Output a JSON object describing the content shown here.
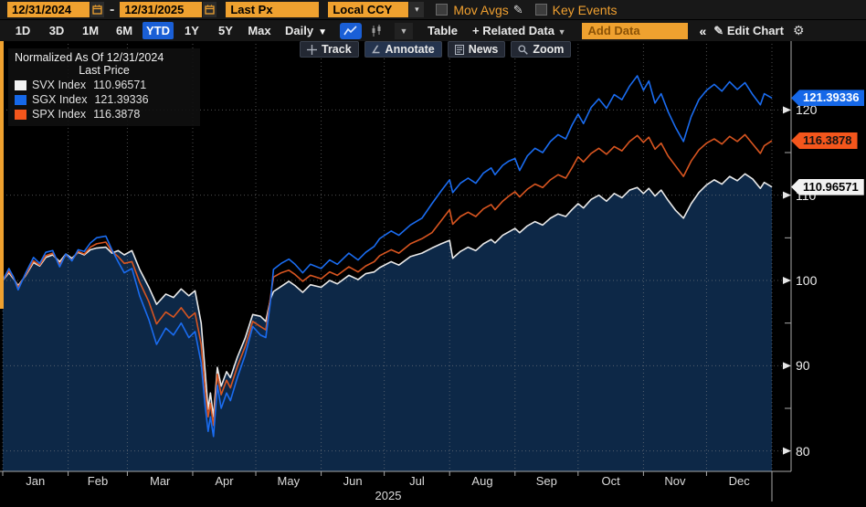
{
  "toolbar": {
    "date_from": "12/31/2024",
    "date_separator": "-",
    "date_to": "12/31/2025",
    "price_field": "Last Px",
    "currency_field": "Local CCY",
    "mov_avgs_label": "Mov Avgs",
    "key_events_label": "Key Events"
  },
  "nav": {
    "ranges": [
      "1D",
      "3D",
      "1M",
      "6M",
      "YTD",
      "1Y",
      "5Y",
      "Max"
    ],
    "selected_range": "YTD",
    "period": "Daily",
    "table_label": "Table",
    "related_data_label": "+ Related Data",
    "related_caret": "▾",
    "add_data_placeholder": "Add Data",
    "collapse_label": "«",
    "edit_chart_label": "Edit Chart"
  },
  "overlay_buttons": {
    "track": "Track",
    "annotate": "Annotate",
    "news": "News",
    "zoom": "Zoom"
  },
  "legend": {
    "title": "Normalized As Of 12/31/2024",
    "subtitle": "Last Price",
    "items": [
      {
        "label": "SVX Index",
        "value": "110.96571",
        "color": "#f2f2f2"
      },
      {
        "label": "SGX Index",
        "value": "121.39336",
        "color": "#1668e8"
      },
      {
        "label": "SPX Index",
        "value": "116.3878",
        "color": "#f4561c"
      }
    ]
  },
  "chart_data": {
    "type": "line",
    "title": "Normalized As Of 12/31/2024",
    "basis": "Last Price",
    "ylim": [
      78,
      128
    ],
    "grid": "dotted",
    "y_axis": {
      "labeled": [
        120,
        110,
        100,
        90,
        80
      ],
      "minor": [
        115,
        105,
        95,
        85
      ]
    },
    "x_axis": {
      "months": [
        "Jan",
        "Feb",
        "Mar",
        "Apr",
        "May",
        "Jun",
        "Jul",
        "Aug",
        "Sep",
        "Oct",
        "Nov",
        "Dec"
      ],
      "year": "2025",
      "month_fractions": [
        0,
        0.085,
        0.162,
        0.247,
        0.329,
        0.414,
        0.496,
        0.581,
        0.666,
        0.748,
        0.833,
        0.915,
        1
      ]
    },
    "t": [
      0,
      0.008,
      0.014,
      0.02,
      0.03,
      0.04,
      0.048,
      0.056,
      0.065,
      0.074,
      0.082,
      0.09,
      0.098,
      0.106,
      0.114,
      0.122,
      0.134,
      0.142,
      0.15,
      0.158,
      0.168,
      0.178,
      0.19,
      0.2,
      0.212,
      0.222,
      0.232,
      0.242,
      0.25,
      0.258,
      0.263,
      0.267,
      0.27,
      0.274,
      0.279,
      0.284,
      0.291,
      0.296,
      0.305,
      0.315,
      0.325,
      0.335,
      0.342,
      0.348,
      0.352,
      0.362,
      0.372,
      0.38,
      0.39,
      0.4,
      0.414,
      0.425,
      0.435,
      0.45,
      0.462,
      0.472,
      0.483,
      0.49,
      0.505,
      0.515,
      0.53,
      0.545,
      0.558,
      0.57,
      0.581,
      0.585,
      0.595,
      0.605,
      0.615,
      0.625,
      0.635,
      0.64,
      0.65,
      0.658,
      0.666,
      0.672,
      0.682,
      0.692,
      0.702,
      0.712,
      0.722,
      0.732,
      0.74,
      0.748,
      0.755,
      0.765,
      0.775,
      0.785,
      0.795,
      0.805,
      0.815,
      0.825,
      0.833,
      0.84,
      0.848,
      0.856,
      0.865,
      0.875,
      0.885,
      0.895,
      0.905,
      0.915,
      0.925,
      0.935,
      0.945,
      0.955,
      0.965,
      0.975,
      0.985,
      0.99,
      1
    ],
    "series": [
      {
        "name": "SVX Index",
        "last": 110.96571,
        "color": "#e9e9e9",
        "fill": "#0d2847",
        "pill": {
          "text": "110.96571",
          "bg": "#f2f2f2",
          "fg": "#000000"
        },
        "values": [
          100,
          100.9,
          100.2,
          99.4,
          100.6,
          102.1,
          101.7,
          102.7,
          103,
          102.2,
          103.1,
          102.6,
          103.3,
          103,
          103.6,
          103.8,
          103.9,
          103.2,
          103.5,
          103,
          103.5,
          101.3,
          99.2,
          97.2,
          98.4,
          98,
          99,
          98.2,
          98.8,
          95,
          89.5,
          84.9,
          86.8,
          84,
          89.8,
          87.6,
          89.3,
          88.6,
          91,
          93.2,
          96,
          95.8,
          95.2,
          97.8,
          98.7,
          99.3,
          99.9,
          99.4,
          98.6,
          99.5,
          99.2,
          100,
          99.6,
          100.6,
          100.1,
          100.8,
          101,
          101.5,
          102.2,
          101.8,
          102.8,
          103.2,
          103.8,
          104.3,
          104.7,
          102.6,
          103.4,
          103.9,
          103.5,
          104.3,
          104.8,
          104.4,
          105.3,
          105.7,
          106.1,
          105.6,
          106.4,
          106.9,
          106.5,
          107.3,
          107.8,
          107.5,
          108.3,
          109,
          108.5,
          109.5,
          110,
          109.3,
          110.2,
          109.7,
          110.6,
          110.9,
          110.2,
          110.8,
          109.9,
          110.6,
          109.4,
          108.2,
          107.3,
          109,
          110.3,
          111.2,
          111.8,
          111.3,
          112.2,
          111.7,
          112.5,
          111.9,
          110.8,
          111.5,
          110.966
        ]
      },
      {
        "name": "SPX Index",
        "last": 116.3878,
        "color": "#d85520",
        "fill": null,
        "pill": {
          "text": "116.3878",
          "bg": "#f4561c",
          "fg": "#131313"
        },
        "values": [
          100,
          101.1,
          100.3,
          99.2,
          100.7,
          102.3,
          101.8,
          102.9,
          103.2,
          101.9,
          103,
          102.4,
          103.4,
          103.1,
          103.9,
          104.3,
          104.5,
          103.4,
          102.8,
          102,
          102.2,
          99.8,
          97.5,
          94.9,
          96.3,
          95.7,
          96.8,
          95.6,
          96.2,
          92.5,
          87.3,
          84,
          85.6,
          83,
          89,
          86.6,
          88.3,
          87.4,
          89.9,
          92.2,
          95.2,
          94.6,
          94.2,
          98,
          100.4,
          100.9,
          101.2,
          100.7,
          99.9,
          100.6,
          100.2,
          101,
          100.6,
          101.6,
          101,
          101.7,
          102.2,
          102.9,
          103.6,
          103.2,
          104.3,
          104.9,
          105.6,
          107,
          108.3,
          106.6,
          107.5,
          108,
          107.5,
          108.4,
          108.9,
          108.3,
          109.3,
          109.9,
          110.4,
          109.8,
          110.7,
          111.3,
          110.9,
          111.8,
          112.4,
          112,
          113.2,
          114.5,
          113.9,
          114.9,
          115.5,
          114.8,
          115.7,
          115.2,
          116.3,
          117,
          116.2,
          116.8,
          115.4,
          116.1,
          114.6,
          113.4,
          112.2,
          114,
          115.3,
          116.1,
          116.6,
          116,
          116.9,
          116.3,
          117.1,
          116,
          114.9,
          115.8,
          116.388
        ]
      },
      {
        "name": "SGX Index",
        "last": 121.39336,
        "color": "#1a6cf0",
        "fill": null,
        "pill": {
          "text": "121.39336",
          "bg": "#1668e8",
          "fg": "#ffffff"
        },
        "values": [
          100,
          101.4,
          100.4,
          98.9,
          100.9,
          102.7,
          102,
          103.3,
          103.5,
          101.6,
          103.1,
          102.3,
          103.6,
          103.4,
          104.4,
          105,
          105.2,
          103.6,
          102.2,
          100.9,
          101.4,
          98.2,
          95.4,
          92.5,
          94.4,
          93.6,
          95,
          93.3,
          94,
          90.3,
          85.4,
          82.3,
          84,
          81.7,
          87.7,
          85,
          86.8,
          85.9,
          88.6,
          91.2,
          94.6,
          93.6,
          93.3,
          97.5,
          101.3,
          102,
          102.5,
          101.9,
          100.9,
          101.9,
          101.4,
          102.4,
          101.9,
          103.2,
          102.4,
          103.3,
          104,
          104.9,
          105.8,
          105.3,
          106.5,
          107.3,
          109,
          110.5,
          111.8,
          110.3,
          111.4,
          112,
          111.4,
          112.6,
          113.2,
          112.4,
          113.5,
          114,
          114.3,
          112.9,
          114.6,
          115.5,
          115,
          116.3,
          117.1,
          116.6,
          118.2,
          119.5,
          118.4,
          120.3,
          121.3,
          120.2,
          121.8,
          121.2,
          122.8,
          124,
          122.3,
          123.4,
          120.8,
          121.9,
          119.8,
          117.9,
          116.3,
          119.2,
          121.2,
          122.3,
          123,
          122.2,
          123.3,
          122.4,
          123.2,
          121.8,
          120.6,
          121.9,
          121.393
        ]
      }
    ]
  }
}
